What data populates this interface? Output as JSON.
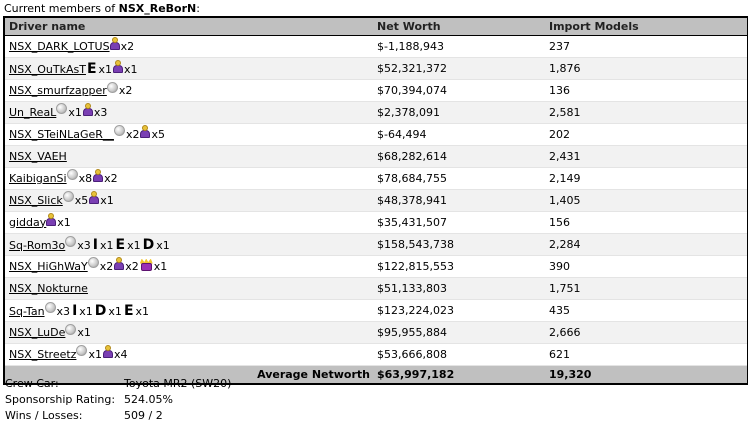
{
  "caption": {
    "prefix": "Current members of ",
    "crew_name": "NSX_ReBorN",
    "suffix": ":"
  },
  "table": {
    "headers": {
      "driver": "Driver name",
      "net_worth": "Net Worth",
      "imports": "Import Models"
    },
    "rows": [
      {
        "name": "NSX_DARK_LOTUS",
        "awards": [
          {
            "icon": "person-award-icon",
            "count": "x2"
          }
        ],
        "net_worth": "$-1,188,943",
        "imports": "237"
      },
      {
        "name": "NSX_OuTkAsT",
        "awards": [
          {
            "icon": "letter",
            "letter": "E",
            "count": "x1"
          },
          {
            "icon": "person-award-icon",
            "count": "x1"
          }
        ],
        "net_worth": "$52,321,372",
        "imports": "1,876"
      },
      {
        "name": "NSX_smurfzapper",
        "awards": [
          {
            "icon": "silver-medal-icon",
            "count": "x2"
          }
        ],
        "net_worth": "$70,394,074",
        "imports": "136"
      },
      {
        "name": "Un_ReaL",
        "awards": [
          {
            "icon": "silver-medal-icon",
            "count": "x1"
          },
          {
            "icon": "person-award-icon",
            "count": "x3"
          }
        ],
        "net_worth": "$2,378,091",
        "imports": "2,581"
      },
      {
        "name": "NSX_STeiNLaGeR__",
        "awards": [
          {
            "icon": "silver-medal-icon",
            "count": "x2"
          },
          {
            "icon": "person-award-icon",
            "count": "x5"
          }
        ],
        "net_worth": "$-64,494",
        "imports": "202"
      },
      {
        "name": "NSX_VAEH",
        "awards": [],
        "net_worth": "$68,282,614",
        "imports": "2,431"
      },
      {
        "name": "KaibiganSi",
        "awards": [
          {
            "icon": "silver-medal-icon",
            "count": "x8"
          },
          {
            "icon": "person-award-icon",
            "count": "x2"
          }
        ],
        "net_worth": "$78,684,755",
        "imports": "2,149"
      },
      {
        "name": "NSX_Slick",
        "awards": [
          {
            "icon": "silver-medal-icon",
            "count": "x5"
          },
          {
            "icon": "person-award-icon",
            "count": "x1"
          }
        ],
        "net_worth": "$48,378,941",
        "imports": "1,405"
      },
      {
        "name": "gidday",
        "awards": [
          {
            "icon": "person-award-icon",
            "count": "x1"
          }
        ],
        "net_worth": "$35,431,507",
        "imports": "156"
      },
      {
        "name": "Sq-Rom3o",
        "awards": [
          {
            "icon": "silver-medal-icon",
            "count": "x3"
          },
          {
            "icon": "letter",
            "letter": "I",
            "count": "x1"
          },
          {
            "icon": "letter",
            "letter": "E",
            "count": "x1"
          },
          {
            "icon": "letter",
            "letter": "D",
            "count": "x1"
          }
        ],
        "net_worth": "$158,543,738",
        "imports": "2,284"
      },
      {
        "name": "NSX_HiGhWaY",
        "awards": [
          {
            "icon": "silver-medal-icon",
            "count": "x2"
          },
          {
            "icon": "person-award-icon",
            "count": "x2"
          },
          {
            "icon": "crown-icon",
            "count": "x1"
          }
        ],
        "net_worth": "$122,815,553",
        "imports": "390"
      },
      {
        "name": "NSX_Nokturne",
        "awards": [],
        "net_worth": "$51,133,803",
        "imports": "1,751"
      },
      {
        "name": "Sq-Tan",
        "awards": [
          {
            "icon": "silver-medal-icon",
            "count": "x3"
          },
          {
            "icon": "letter",
            "letter": "I",
            "count": "x1"
          },
          {
            "icon": "letter",
            "letter": "D",
            "count": "x1"
          },
          {
            "icon": "letter",
            "letter": "E",
            "count": "x1"
          }
        ],
        "net_worth": "$123,224,023",
        "imports": "435"
      },
      {
        "name": "NSX_LuDe",
        "awards": [
          {
            "icon": "silver-medal-icon",
            "count": "x1"
          }
        ],
        "net_worth": "$95,955,884",
        "imports": "2,666"
      },
      {
        "name": "NSX_Streetz",
        "awards": [
          {
            "icon": "silver-medal-icon",
            "count": "x1"
          },
          {
            "icon": "person-award-icon",
            "count": "x4"
          }
        ],
        "net_worth": "$53,666,808",
        "imports": "621"
      }
    ],
    "average": {
      "label": "Average Networth",
      "net_worth": "$63,997,182",
      "imports": "19,320"
    }
  },
  "crew_info": [
    {
      "label": "Crew Car:",
      "value": "Toyota MR2 (SW20)"
    },
    {
      "label": "Sponsorship Rating:",
      "value": "524.05%"
    },
    {
      "label": "Wins / Losses:",
      "value": "509 / 2"
    }
  ],
  "colors": {
    "header_bg": "#c0c0c0",
    "row_alt_bg": "#f2f2f2",
    "border": "#000000"
  }
}
